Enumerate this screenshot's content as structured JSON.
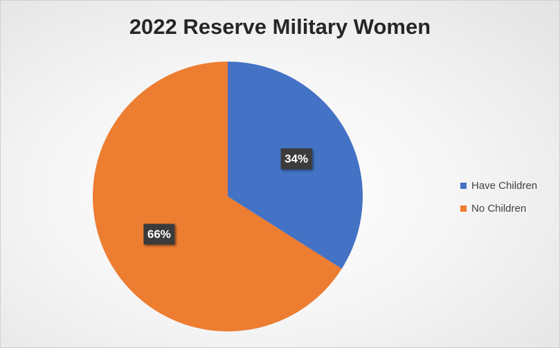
{
  "chart_data": {
    "type": "pie",
    "title": "2022 Reserve Military Women",
    "slices": [
      {
        "name": "Have Children",
        "value": 34,
        "label": "34%",
        "color": "#4472C4"
      },
      {
        "name": "No Children",
        "value": 66,
        "label": "66%",
        "color": "#ED7D31"
      }
    ],
    "start_angle": "12 o'clock, clockwise",
    "legend_position": "right",
    "data_label_style": "dark box, white bold text"
  }
}
